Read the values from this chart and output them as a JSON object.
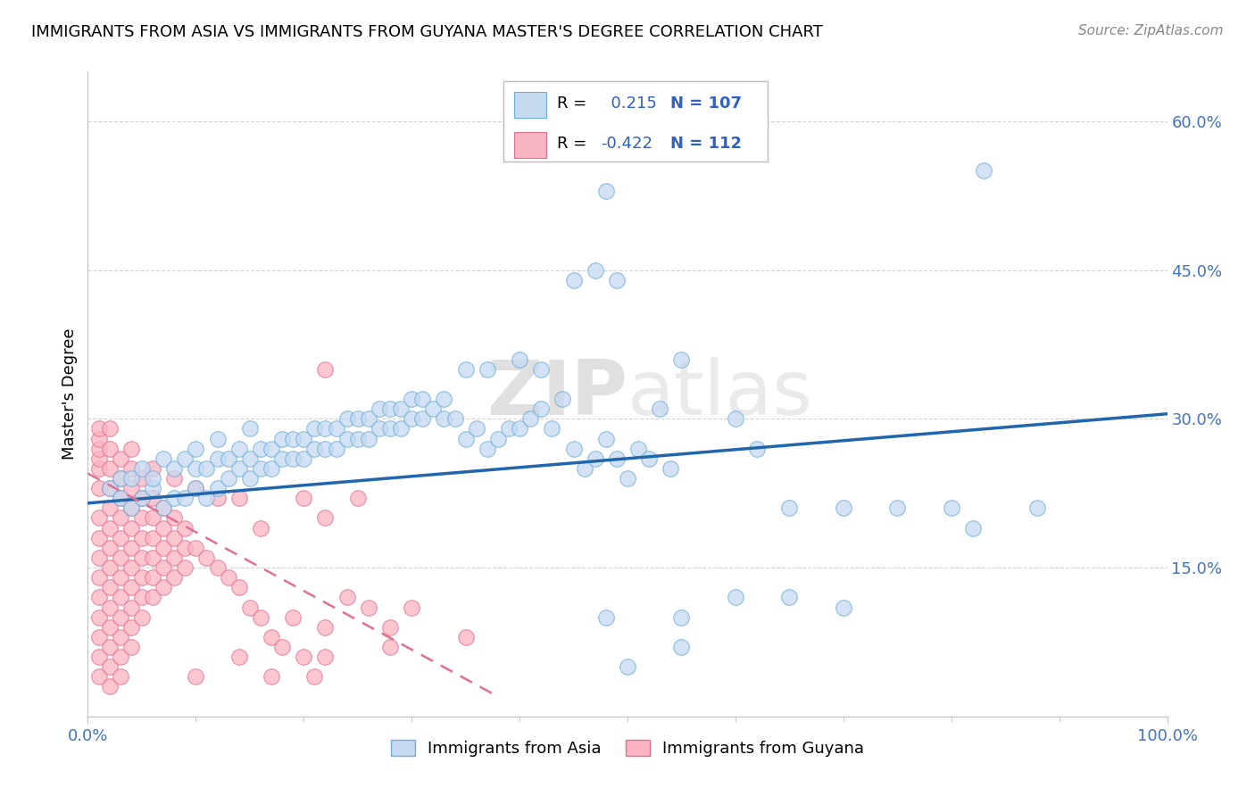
{
  "title": "IMMIGRANTS FROM ASIA VS IMMIGRANTS FROM GUYANA MASTER'S DEGREE CORRELATION CHART",
  "source": "Source: ZipAtlas.com",
  "ylabel": "Master's Degree",
  "xlim": [
    0.0,
    1.0
  ],
  "ylim": [
    0.0,
    0.65
  ],
  "yticks": [
    0.15,
    0.3,
    0.45,
    0.6
  ],
  "ytick_labels": [
    "15.0%",
    "30.0%",
    "45.0%",
    "60.0%"
  ],
  "asia_color": "#c5d9f1",
  "asia_edge_color": "#6baed6",
  "guyana_color": "#fbb4c1",
  "guyana_edge_color": "#e07090",
  "asia_line_color": "#2166ac",
  "guyana_line_color": "#e07090",
  "R_asia": 0.215,
  "N_asia": 107,
  "R_guyana": -0.422,
  "N_guyana": 112,
  "legend_label_asia": "Immigrants from Asia",
  "legend_label_guyana": "Immigrants from Guyana",
  "watermark": "ZIPatlas",
  "asia_scatter": [
    [
      0.02,
      0.23
    ],
    [
      0.03,
      0.22
    ],
    [
      0.03,
      0.24
    ],
    [
      0.04,
      0.21
    ],
    [
      0.04,
      0.24
    ],
    [
      0.05,
      0.22
    ],
    [
      0.05,
      0.25
    ],
    [
      0.06,
      0.23
    ],
    [
      0.06,
      0.24
    ],
    [
      0.07,
      0.21
    ],
    [
      0.07,
      0.26
    ],
    [
      0.08,
      0.22
    ],
    [
      0.08,
      0.25
    ],
    [
      0.09,
      0.22
    ],
    [
      0.09,
      0.26
    ],
    [
      0.1,
      0.23
    ],
    [
      0.1,
      0.25
    ],
    [
      0.1,
      0.27
    ],
    [
      0.11,
      0.22
    ],
    [
      0.11,
      0.25
    ],
    [
      0.12,
      0.23
    ],
    [
      0.12,
      0.26
    ],
    [
      0.12,
      0.28
    ],
    [
      0.13,
      0.24
    ],
    [
      0.13,
      0.26
    ],
    [
      0.14,
      0.25
    ],
    [
      0.14,
      0.27
    ],
    [
      0.15,
      0.24
    ],
    [
      0.15,
      0.26
    ],
    [
      0.15,
      0.29
    ],
    [
      0.16,
      0.25
    ],
    [
      0.16,
      0.27
    ],
    [
      0.17,
      0.25
    ],
    [
      0.17,
      0.27
    ],
    [
      0.18,
      0.26
    ],
    [
      0.18,
      0.28
    ],
    [
      0.19,
      0.26
    ],
    [
      0.19,
      0.28
    ],
    [
      0.2,
      0.26
    ],
    [
      0.2,
      0.28
    ],
    [
      0.21,
      0.27
    ],
    [
      0.21,
      0.29
    ],
    [
      0.22,
      0.27
    ],
    [
      0.22,
      0.29
    ],
    [
      0.23,
      0.27
    ],
    [
      0.23,
      0.29
    ],
    [
      0.24,
      0.28
    ],
    [
      0.24,
      0.3
    ],
    [
      0.25,
      0.28
    ],
    [
      0.25,
      0.3
    ],
    [
      0.26,
      0.28
    ],
    [
      0.26,
      0.3
    ],
    [
      0.27,
      0.29
    ],
    [
      0.27,
      0.31
    ],
    [
      0.28,
      0.29
    ],
    [
      0.28,
      0.31
    ],
    [
      0.29,
      0.29
    ],
    [
      0.29,
      0.31
    ],
    [
      0.3,
      0.3
    ],
    [
      0.3,
      0.32
    ],
    [
      0.31,
      0.3
    ],
    [
      0.31,
      0.32
    ],
    [
      0.32,
      0.31
    ],
    [
      0.33,
      0.3
    ],
    [
      0.33,
      0.32
    ],
    [
      0.34,
      0.3
    ],
    [
      0.35,
      0.28
    ],
    [
      0.36,
      0.29
    ],
    [
      0.37,
      0.27
    ],
    [
      0.38,
      0.28
    ],
    [
      0.39,
      0.29
    ],
    [
      0.4,
      0.29
    ],
    [
      0.41,
      0.3
    ],
    [
      0.42,
      0.31
    ],
    [
      0.43,
      0.29
    ],
    [
      0.44,
      0.32
    ],
    [
      0.45,
      0.27
    ],
    [
      0.46,
      0.25
    ],
    [
      0.47,
      0.26
    ],
    [
      0.48,
      0.28
    ],
    [
      0.49,
      0.26
    ],
    [
      0.5,
      0.24
    ],
    [
      0.51,
      0.27
    ],
    [
      0.52,
      0.26
    ],
    [
      0.53,
      0.31
    ],
    [
      0.54,
      0.25
    ],
    [
      0.35,
      0.35
    ],
    [
      0.37,
      0.35
    ],
    [
      0.4,
      0.36
    ],
    [
      0.42,
      0.35
    ],
    [
      0.45,
      0.44
    ],
    [
      0.47,
      0.45
    ],
    [
      0.49,
      0.44
    ],
    [
      0.48,
      0.53
    ],
    [
      0.5,
      0.57
    ],
    [
      0.55,
      0.36
    ],
    [
      0.6,
      0.3
    ],
    [
      0.62,
      0.27
    ],
    [
      0.65,
      0.21
    ],
    [
      0.7,
      0.21
    ],
    [
      0.75,
      0.21
    ],
    [
      0.8,
      0.21
    ],
    [
      0.82,
      0.19
    ],
    [
      0.88,
      0.21
    ],
    [
      0.83,
      0.55
    ],
    [
      0.55,
      0.1
    ],
    [
      0.6,
      0.12
    ],
    [
      0.65,
      0.12
    ],
    [
      0.7,
      0.11
    ],
    [
      0.48,
      0.1
    ],
    [
      0.5,
      0.05
    ],
    [
      0.55,
      0.07
    ]
  ],
  "guyana_scatter": [
    [
      0.01,
      0.23
    ],
    [
      0.01,
      0.25
    ],
    [
      0.01,
      0.26
    ],
    [
      0.01,
      0.27
    ],
    [
      0.01,
      0.28
    ],
    [
      0.01,
      0.29
    ],
    [
      0.01,
      0.2
    ],
    [
      0.01,
      0.18
    ],
    [
      0.01,
      0.16
    ],
    [
      0.01,
      0.14
    ],
    [
      0.01,
      0.12
    ],
    [
      0.01,
      0.1
    ],
    [
      0.01,
      0.08
    ],
    [
      0.01,
      0.06
    ],
    [
      0.01,
      0.04
    ],
    [
      0.02,
      0.27
    ],
    [
      0.02,
      0.25
    ],
    [
      0.02,
      0.23
    ],
    [
      0.02,
      0.21
    ],
    [
      0.02,
      0.19
    ],
    [
      0.02,
      0.17
    ],
    [
      0.02,
      0.15
    ],
    [
      0.02,
      0.13
    ],
    [
      0.02,
      0.11
    ],
    [
      0.02,
      0.09
    ],
    [
      0.02,
      0.07
    ],
    [
      0.02,
      0.05
    ],
    [
      0.02,
      0.03
    ],
    [
      0.03,
      0.26
    ],
    [
      0.03,
      0.24
    ],
    [
      0.03,
      0.22
    ],
    [
      0.03,
      0.2
    ],
    [
      0.03,
      0.18
    ],
    [
      0.03,
      0.16
    ],
    [
      0.03,
      0.14
    ],
    [
      0.03,
      0.12
    ],
    [
      0.03,
      0.1
    ],
    [
      0.03,
      0.08
    ],
    [
      0.03,
      0.06
    ],
    [
      0.03,
      0.04
    ],
    [
      0.04,
      0.25
    ],
    [
      0.04,
      0.23
    ],
    [
      0.04,
      0.21
    ],
    [
      0.04,
      0.19
    ],
    [
      0.04,
      0.17
    ],
    [
      0.04,
      0.15
    ],
    [
      0.04,
      0.13
    ],
    [
      0.04,
      0.11
    ],
    [
      0.04,
      0.09
    ],
    [
      0.04,
      0.07
    ],
    [
      0.05,
      0.24
    ],
    [
      0.05,
      0.22
    ],
    [
      0.05,
      0.2
    ],
    [
      0.05,
      0.18
    ],
    [
      0.05,
      0.16
    ],
    [
      0.05,
      0.14
    ],
    [
      0.05,
      0.12
    ],
    [
      0.05,
      0.1
    ],
    [
      0.06,
      0.22
    ],
    [
      0.06,
      0.2
    ],
    [
      0.06,
      0.18
    ],
    [
      0.06,
      0.16
    ],
    [
      0.06,
      0.14
    ],
    [
      0.06,
      0.12
    ],
    [
      0.07,
      0.21
    ],
    [
      0.07,
      0.19
    ],
    [
      0.07,
      0.17
    ],
    [
      0.07,
      0.15
    ],
    [
      0.07,
      0.13
    ],
    [
      0.08,
      0.2
    ],
    [
      0.08,
      0.18
    ],
    [
      0.08,
      0.16
    ],
    [
      0.08,
      0.14
    ],
    [
      0.09,
      0.19
    ],
    [
      0.09,
      0.17
    ],
    [
      0.09,
      0.15
    ],
    [
      0.1,
      0.17
    ],
    [
      0.11,
      0.16
    ],
    [
      0.12,
      0.15
    ],
    [
      0.13,
      0.14
    ],
    [
      0.14,
      0.13
    ],
    [
      0.15,
      0.11
    ],
    [
      0.16,
      0.1
    ],
    [
      0.17,
      0.08
    ],
    [
      0.18,
      0.07
    ],
    [
      0.2,
      0.22
    ],
    [
      0.22,
      0.2
    ],
    [
      0.12,
      0.22
    ],
    [
      0.1,
      0.23
    ],
    [
      0.08,
      0.24
    ],
    [
      0.06,
      0.25
    ],
    [
      0.04,
      0.27
    ],
    [
      0.02,
      0.29
    ],
    [
      0.14,
      0.22
    ],
    [
      0.16,
      0.19
    ],
    [
      0.19,
      0.1
    ],
    [
      0.22,
      0.09
    ],
    [
      0.24,
      0.12
    ],
    [
      0.26,
      0.11
    ],
    [
      0.28,
      0.09
    ],
    [
      0.25,
      0.22
    ],
    [
      0.3,
      0.11
    ],
    [
      0.35,
      0.08
    ],
    [
      0.2,
      0.06
    ],
    [
      0.22,
      0.06
    ],
    [
      0.14,
      0.06
    ],
    [
      0.17,
      0.04
    ],
    [
      0.21,
      0.04
    ],
    [
      0.1,
      0.04
    ],
    [
      0.28,
      0.07
    ],
    [
      0.22,
      0.35
    ]
  ],
  "asia_line_x": [
    0.0,
    1.0
  ],
  "asia_line_y": [
    0.215,
    0.305
  ],
  "guyana_line_x": [
    0.0,
    0.38
  ],
  "guyana_line_y": [
    0.245,
    0.02
  ],
  "guyana_line_dash": [
    6,
    4
  ]
}
